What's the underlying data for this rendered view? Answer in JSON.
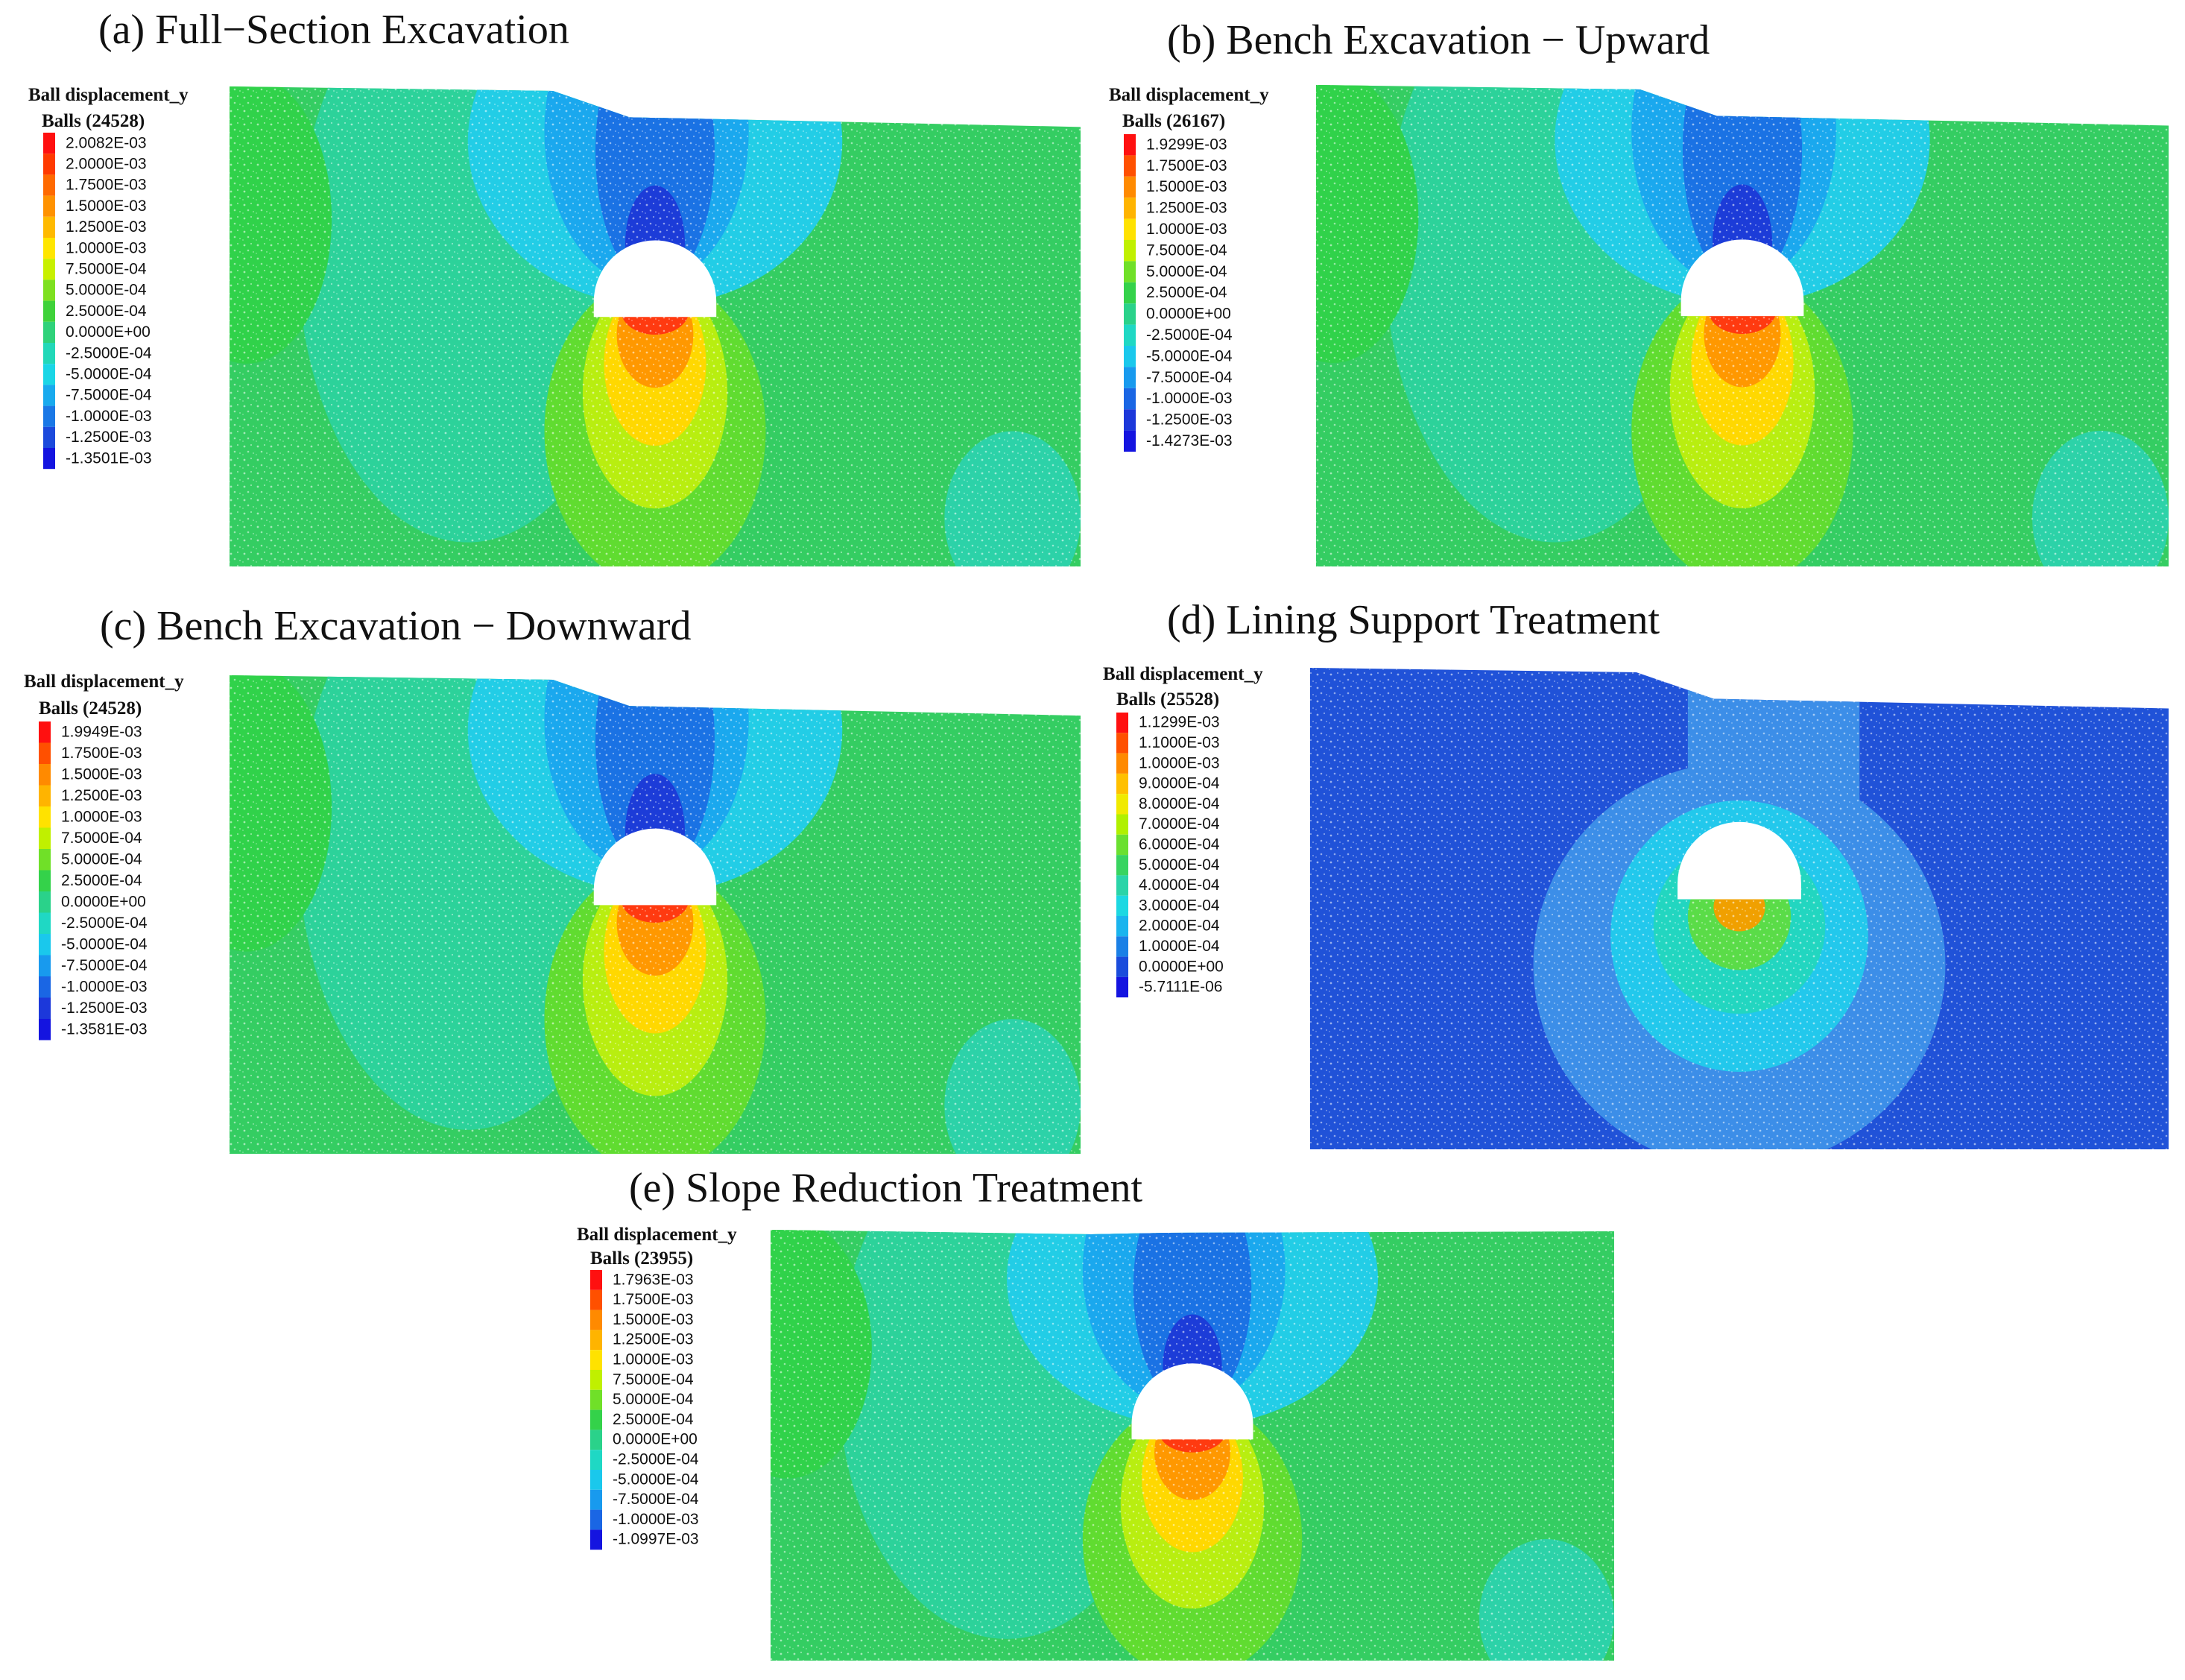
{
  "figure": {
    "panels": [
      {
        "id": "a",
        "title": "(a) Full−Section Excavation",
        "legend_title": "Ball displacement_y",
        "legend_subtitle": "Balls (24528)",
        "legend_labels": [
          "2.0082E-03",
          "2.0000E-03",
          "1.7500E-03",
          "1.5000E-03",
          "1.2500E-03",
          "1.0000E-03",
          "7.5000E-04",
          "5.0000E-04",
          "2.5000E-04",
          "0.0000E+00",
          "-2.5000E-04",
          "-5.0000E-04",
          "-7.5000E-04",
          "-1.0000E-03",
          "-1.2500E-03",
          "-1.3501E-03"
        ],
        "legend_colors": [
          "#ff1010",
          "#ff3a00",
          "#ff6a00",
          "#ff9200",
          "#ffba00",
          "#ffe600",
          "#c8f000",
          "#7ee020",
          "#3fd23a",
          "#2fd27a",
          "#22d8b8",
          "#1ad6e6",
          "#18aaee",
          "#1a78e6",
          "#1c4adc",
          "#1414e0"
        ],
        "field": "excavation",
        "variant": "full",
        "base_color": "#34cd62"
      },
      {
        "id": "b",
        "title": "(b) Bench Excavation − Upward",
        "legend_title": "Ball displacement_y",
        "legend_subtitle": "Balls (26167)",
        "legend_labels": [
          "1.9299E-03",
          "1.7500E-03",
          "1.5000E-03",
          "1.2500E-03",
          "1.0000E-03",
          "7.5000E-04",
          "5.0000E-04",
          "2.5000E-04",
          "0.0000E+00",
          "-2.5000E-04",
          "-5.0000E-04",
          "-7.5000E-04",
          "-1.0000E-03",
          "-1.2500E-03",
          "-1.4273E-03"
        ],
        "legend_colors": [
          "#ff1010",
          "#ff5000",
          "#ff8a00",
          "#ffb400",
          "#ffe200",
          "#c0f000",
          "#70e028",
          "#34d24a",
          "#2ad28a",
          "#1fd8c4",
          "#1ac8ec",
          "#189aee",
          "#1a66e4",
          "#1c38da",
          "#1414e0"
        ],
        "field": "excavation",
        "variant": "bench",
        "base_color": "#34cd62"
      },
      {
        "id": "c",
        "title": "(c) Bench Excavation − Downward",
        "legend_title": "Ball displacement_y",
        "legend_subtitle": "Balls (24528)",
        "legend_labels": [
          "1.9949E-03",
          "1.7500E-03",
          "1.5000E-03",
          "1.2500E-03",
          "1.0000E-03",
          "7.5000E-04",
          "5.0000E-04",
          "2.5000E-04",
          "0.0000E+00",
          "-2.5000E-04",
          "-5.0000E-04",
          "-7.5000E-04",
          "-1.0000E-03",
          "-1.2500E-03",
          "-1.3581E-03"
        ],
        "legend_colors": [
          "#ff1010",
          "#ff5000",
          "#ff8a00",
          "#ffb400",
          "#ffe200",
          "#c0f000",
          "#70e028",
          "#34d24a",
          "#2ad28a",
          "#1fd8c4",
          "#1ac8ec",
          "#189aee",
          "#1a66e4",
          "#1c38da",
          "#1414e0"
        ],
        "field": "excavation",
        "variant": "bench",
        "base_color": "#34cd62"
      },
      {
        "id": "d",
        "title": "(d) Lining Support Treatment",
        "legend_title": "Ball displacement_y",
        "legend_subtitle": "Balls (25528)",
        "legend_labels": [
          "1.1299E-03",
          "1.1000E-03",
          "1.0000E-03",
          "9.0000E-04",
          "8.0000E-04",
          "7.0000E-04",
          "6.0000E-04",
          "5.0000E-04",
          "4.0000E-04",
          "3.0000E-04",
          "2.0000E-04",
          "1.0000E-04",
          "0.0000E+00",
          "-5.7111E-06"
        ],
        "legend_colors": [
          "#ff1010",
          "#ff5000",
          "#ff8a00",
          "#ffc000",
          "#f0ea00",
          "#b0f000",
          "#6ae030",
          "#38d460",
          "#2ad4a8",
          "#1cd8e2",
          "#1ab4ee",
          "#1a80e6",
          "#1a4cdc",
          "#1414e0"
        ],
        "field": "lining",
        "variant": "lining",
        "base_color": "#1f55d8"
      },
      {
        "id": "e",
        "title": "(e) Slope Reduction Treatment",
        "legend_title": "Ball displacement_y",
        "legend_subtitle": "Balls (23955)",
        "legend_labels": [
          "1.7963E-03",
          "1.7500E-03",
          "1.5000E-03",
          "1.2500E-03",
          "1.0000E-03",
          "7.5000E-04",
          "5.0000E-04",
          "2.5000E-04",
          "0.0000E+00",
          "-2.5000E-04",
          "-5.0000E-04",
          "-7.5000E-04",
          "-1.0000E-03",
          "-1.0997E-03"
        ],
        "legend_colors": [
          "#ff1010",
          "#ff5000",
          "#ff8a00",
          "#ffb400",
          "#ffe200",
          "#c0f000",
          "#70e028",
          "#34d24a",
          "#2ad28a",
          "#1fd8c4",
          "#1ac8ec",
          "#189aee",
          "#1a66e4",
          "#1414e0"
        ],
        "field": "excavation",
        "variant": "slope",
        "base_color": "#34cd62"
      }
    ]
  }
}
